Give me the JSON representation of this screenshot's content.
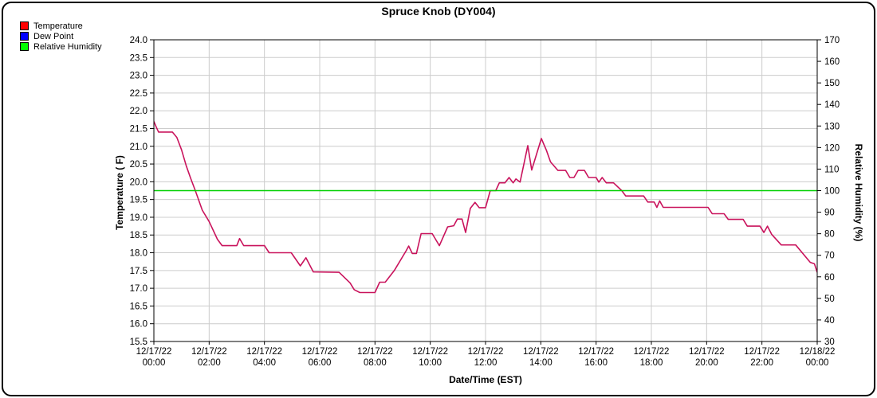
{
  "title": "Spruce Knob (DY004)",
  "legend": [
    {
      "label": "Temperature",
      "color": "#ff0000"
    },
    {
      "label": "Dew Point",
      "color": "#0000ff"
    },
    {
      "label": "Relative Humidity",
      "color": "#00ff00"
    }
  ],
  "chart_data": {
    "type": "line",
    "title": "Spruce Knob (DY004)",
    "xlabel": "Date/Time (EST)",
    "ylabel_left": "Temperature ( F)",
    "ylabel_right": "Relative Humidity (%)",
    "ylim_left": [
      15.5,
      24.0
    ],
    "ytick_step_left": 0.5,
    "ytick_decimals_left": 1,
    "ylim_right": [
      30,
      170
    ],
    "ytick_step_right": 10,
    "ytick_decimals_right": 0,
    "xlim_hours": [
      0,
      24
    ],
    "grid": true,
    "grid_color": "#cccccc",
    "x_ticks": [
      {
        "hour": 0,
        "date": "12/17/22",
        "time": "00:00"
      },
      {
        "hour": 2,
        "date": "12/17/22",
        "time": "02:00"
      },
      {
        "hour": 4,
        "date": "12/17/22",
        "time": "04:00"
      },
      {
        "hour": 6,
        "date": "12/17/22",
        "time": "06:00"
      },
      {
        "hour": 8,
        "date": "12/17/22",
        "time": "08:00"
      },
      {
        "hour": 10,
        "date": "12/17/22",
        "time": "10:00"
      },
      {
        "hour": 12,
        "date": "12/17/22",
        "time": "12:00"
      },
      {
        "hour": 14,
        "date": "12/17/22",
        "time": "14:00"
      },
      {
        "hour": 16,
        "date": "12/17/22",
        "time": "16:00"
      },
      {
        "hour": 18,
        "date": "12/17/22",
        "time": "18:00"
      },
      {
        "hour": 20,
        "date": "12/17/22",
        "time": "20:00"
      },
      {
        "hour": 22,
        "date": "12/17/22",
        "time": "22:00"
      },
      {
        "hour": 24,
        "date": "12/18/22",
        "time": "00:00"
      }
    ],
    "series": [
      {
        "name": "Temperature",
        "axis": "left",
        "color": "#c9135c",
        "visible": true,
        "points": [
          [
            0.0,
            21.7
          ],
          [
            0.08,
            21.55
          ],
          [
            0.17,
            21.4
          ],
          [
            0.67,
            21.4
          ],
          [
            0.83,
            21.25
          ],
          [
            1.0,
            20.9
          ],
          [
            1.17,
            20.45
          ],
          [
            1.33,
            20.1
          ],
          [
            1.5,
            19.75
          ],
          [
            1.75,
            19.2
          ],
          [
            2.0,
            18.88
          ],
          [
            2.3,
            18.38
          ],
          [
            2.47,
            18.2
          ],
          [
            3.0,
            18.2
          ],
          [
            3.1,
            18.4
          ],
          [
            3.25,
            18.2
          ],
          [
            4.0,
            18.2
          ],
          [
            4.17,
            18.0
          ],
          [
            4.97,
            18.0
          ],
          [
            5.3,
            17.63
          ],
          [
            5.5,
            17.86
          ],
          [
            5.77,
            17.46
          ],
          [
            6.7,
            17.45
          ],
          [
            7.1,
            17.15
          ],
          [
            7.25,
            16.96
          ],
          [
            7.45,
            16.88
          ],
          [
            8.0,
            16.88
          ],
          [
            8.17,
            17.17
          ],
          [
            8.37,
            17.17
          ],
          [
            8.7,
            17.5
          ],
          [
            9.13,
            18.06
          ],
          [
            9.22,
            18.19
          ],
          [
            9.35,
            17.98
          ],
          [
            9.5,
            17.98
          ],
          [
            9.67,
            18.54
          ],
          [
            10.07,
            18.54
          ],
          [
            10.33,
            18.2
          ],
          [
            10.63,
            18.73
          ],
          [
            10.85,
            18.76
          ],
          [
            10.98,
            18.95
          ],
          [
            11.15,
            18.95
          ],
          [
            11.28,
            18.57
          ],
          [
            11.45,
            19.25
          ],
          [
            11.62,
            19.42
          ],
          [
            11.77,
            19.27
          ],
          [
            12.0,
            19.27
          ],
          [
            12.17,
            19.75
          ],
          [
            12.37,
            19.75
          ],
          [
            12.5,
            19.97
          ],
          [
            12.7,
            19.97
          ],
          [
            12.85,
            20.12
          ],
          [
            13.0,
            19.97
          ],
          [
            13.1,
            20.08
          ],
          [
            13.25,
            19.99
          ],
          [
            13.53,
            21.02
          ],
          [
            13.67,
            20.33
          ],
          [
            14.02,
            21.22
          ],
          [
            14.2,
            20.89
          ],
          [
            14.35,
            20.56
          ],
          [
            14.62,
            20.32
          ],
          [
            14.9,
            20.32
          ],
          [
            15.05,
            20.12
          ],
          [
            15.2,
            20.12
          ],
          [
            15.35,
            20.32
          ],
          [
            15.58,
            20.32
          ],
          [
            15.73,
            20.12
          ],
          [
            16.0,
            20.12
          ],
          [
            16.1,
            19.99
          ],
          [
            16.22,
            20.12
          ],
          [
            16.37,
            19.97
          ],
          [
            16.63,
            19.97
          ],
          [
            16.93,
            19.75
          ],
          [
            17.07,
            19.6
          ],
          [
            17.72,
            19.6
          ],
          [
            17.87,
            19.43
          ],
          [
            18.1,
            19.43
          ],
          [
            18.2,
            19.28
          ],
          [
            18.3,
            19.46
          ],
          [
            18.43,
            19.28
          ],
          [
            20.05,
            19.28
          ],
          [
            20.2,
            19.1
          ],
          [
            20.63,
            19.1
          ],
          [
            20.78,
            18.94
          ],
          [
            21.32,
            18.94
          ],
          [
            21.47,
            18.75
          ],
          [
            21.93,
            18.75
          ],
          [
            22.07,
            18.57
          ],
          [
            22.2,
            18.75
          ],
          [
            22.35,
            18.52
          ],
          [
            22.7,
            18.22
          ],
          [
            23.22,
            18.22
          ],
          [
            23.75,
            17.73
          ],
          [
            23.9,
            17.69
          ],
          [
            24.0,
            17.45
          ]
        ]
      },
      {
        "name": "Dew Point",
        "axis": "left",
        "color": "#0000ff",
        "visible": false,
        "points": []
      },
      {
        "name": "Relative Humidity",
        "axis": "right",
        "color": "#00d000",
        "visible": true,
        "points": [
          [
            0,
            100
          ],
          [
            24,
            100
          ]
        ]
      }
    ]
  }
}
